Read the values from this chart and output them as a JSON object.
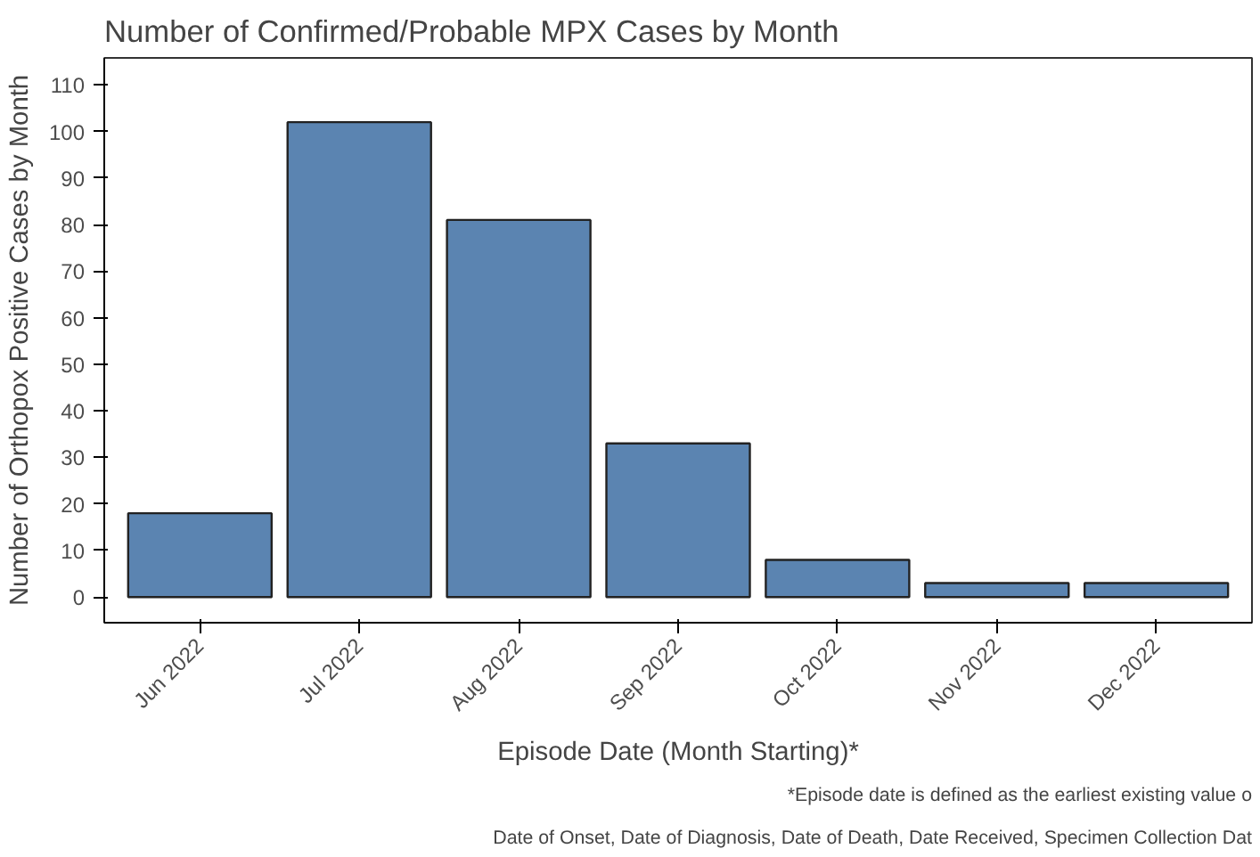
{
  "chart_data": {
    "type": "bar",
    "title": "Number of Confirmed/Probable MPX Cases by Month",
    "xlabel": "Episode Date (Month Starting)*",
    "ylabel": "Number of Orthopox Positive Cases by Month",
    "categories": [
      "Jun 2022",
      "Jul 2022",
      "Aug 2022",
      "Sep 2022",
      "Oct 2022",
      "Nov 2022",
      "Dec 2022"
    ],
    "values": [
      18,
      102,
      81,
      33,
      8,
      3,
      3
    ],
    "color": "#5b84b1",
    "ylim": [
      -5.5,
      115.8
    ],
    "yticks": [
      0,
      10,
      20,
      30,
      40,
      50,
      60,
      70,
      80,
      90,
      100,
      110
    ],
    "grid": false,
    "annotations": [
      "*Episode date is defined as the earliest existing value o",
      "Date of Onset, Date of Diagnosis, Date of Death, Date Received, Specimen Collection Dat"
    ]
  }
}
